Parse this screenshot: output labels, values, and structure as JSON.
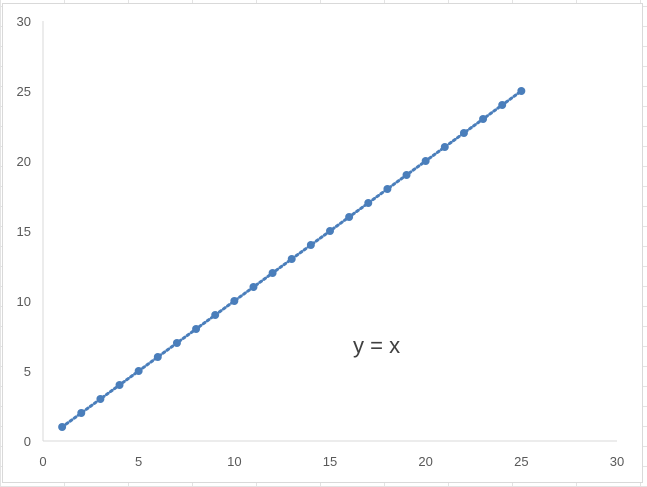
{
  "chart_data": {
    "type": "scatter",
    "title": "",
    "xlabel": "",
    "ylabel": "",
    "xlim": [
      0,
      30
    ],
    "ylim": [
      0,
      30
    ],
    "xticks": [
      "0",
      "5",
      "10",
      "15",
      "20",
      "25",
      "30"
    ],
    "yticks": [
      "0",
      "5",
      "10",
      "15",
      "20",
      "25",
      "30"
    ],
    "grid": false,
    "legend": "none",
    "series": [
      {
        "x": [
          1,
          2,
          3,
          4,
          5,
          6,
          7,
          8,
          9,
          10,
          11,
          12,
          13,
          14,
          15,
          16,
          17,
          18,
          19,
          20,
          21,
          22,
          23,
          24,
          25
        ],
        "y": [
          1,
          2,
          3,
          4,
          5,
          6,
          7,
          8,
          9,
          10,
          11,
          12,
          13,
          14,
          15,
          16,
          17,
          18,
          19,
          20,
          21,
          22,
          23,
          24,
          25
        ],
        "color": "#4a7ebb",
        "trendline": "dotted"
      }
    ],
    "annotation": "y = x"
  }
}
